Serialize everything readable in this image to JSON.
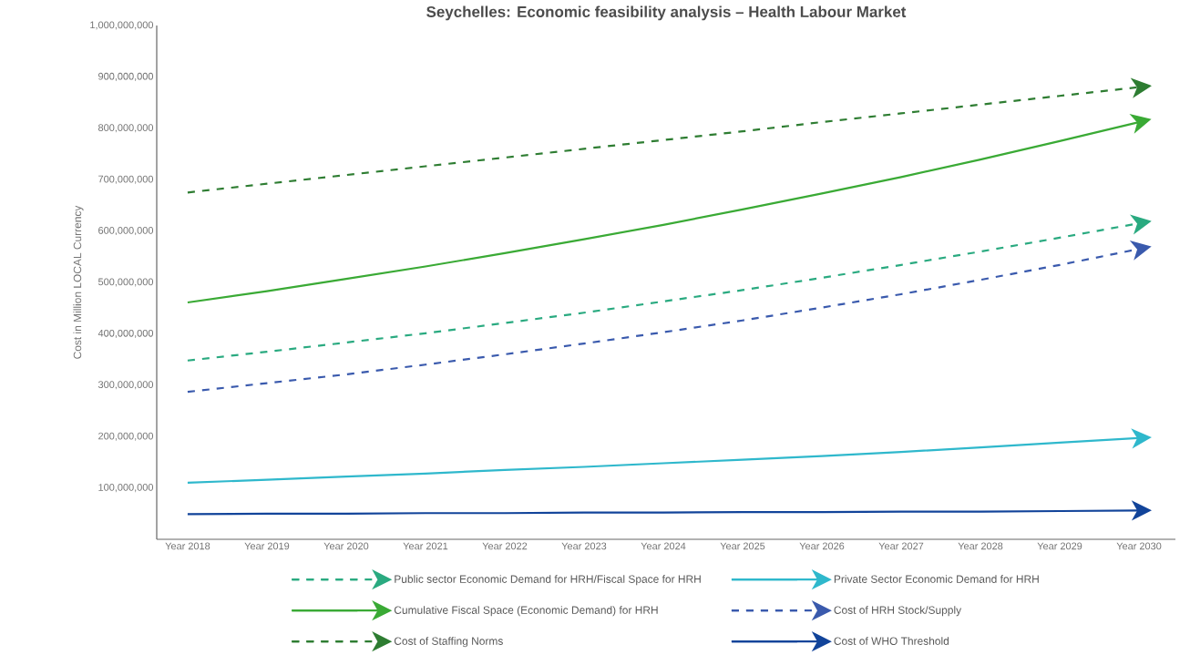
{
  "chart_data": {
    "type": "line",
    "title": "Seychelles: Economic feasibility analysis – Health Labour Market",
    "ylabel": "Cost in Million LOCAL Currency",
    "categories": [
      "Year 2018",
      "Year 2019",
      "Year 2020",
      "Year 2021",
      "Year 2022",
      "Year 2023",
      "Year 2024",
      "Year 2025",
      "Year 2026",
      "Year 2027",
      "Year 2028",
      "Year 2029",
      "Year 2030"
    ],
    "ylim": [
      0,
      1000000000
    ],
    "yticks": [
      {
        "value": 100000000,
        "label": "100,000,000"
      },
      {
        "value": 200000000,
        "label": "200,000,000"
      },
      {
        "value": 300000000,
        "label": "300,000,000"
      },
      {
        "value": 400000000,
        "label": "400,000,000"
      },
      {
        "value": 500000000,
        "label": "500,000,000"
      },
      {
        "value": 600000000,
        "label": "600,000,000"
      },
      {
        "value": 700000000,
        "label": "700,000,000"
      },
      {
        "value": 800000000,
        "label": "800,000,000"
      },
      {
        "value": 900000000,
        "label": "900,000,000"
      },
      {
        "value": 1000000000,
        "label": "1,000,000,000"
      }
    ],
    "grid": false,
    "legend": "bottom",
    "marker": "none",
    "series": [
      {
        "name": "Public sector Economic Demand for HRH/Fiscal Space for HRH",
        "color": "#2aaa80",
        "line_style": "dashed",
        "values": [
          348000000,
          365000000,
          383000000,
          401000000,
          421000000,
          441000000,
          463000000,
          485000000,
          509000000,
          534000000,
          560000000,
          587000000,
          615000000
        ]
      },
      {
        "name": "Private Sector Economic Demand for HRH",
        "color": "#2fb8cc",
        "line_style": "solid",
        "values": [
          110000000,
          116000000,
          122000000,
          128000000,
          135000000,
          141000000,
          148000000,
          155000000,
          162000000,
          170000000,
          179000000,
          188000000,
          197000000
        ]
      },
      {
        "name": "Cumulative Fiscal Space (Economic Demand) for HRH",
        "color": "#3aaa35",
        "line_style": "solid",
        "values": [
          461000000,
          483000000,
          507000000,
          531000000,
          557000000,
          584000000,
          612000000,
          642000000,
          673000000,
          705000000,
          739000000,
          775000000,
          812000000
        ]
      },
      {
        "name": "Cost of HRH Stock/Supply",
        "color": "#3a5aad",
        "line_style": "dashed",
        "values": [
          287000000,
          304000000,
          321000000,
          340000000,
          360000000,
          381000000,
          403000000,
          426000000,
          451000000,
          477000000,
          505000000,
          534000000,
          565000000
        ]
      },
      {
        "name": "Cost of Staffing Norms",
        "color": "#2e7d32",
        "line_style": "dashed",
        "values": [
          675000000,
          692000000,
          709000000,
          726000000,
          743000000,
          760000000,
          777000000,
          794000000,
          812000000,
          829000000,
          846000000,
          863000000,
          880000000
        ]
      },
      {
        "name": "Cost of WHO Threshold",
        "color": "#12449a",
        "line_style": "solid",
        "values": [
          49000000,
          50000000,
          50000000,
          51000000,
          51000000,
          52000000,
          52000000,
          53000000,
          53000000,
          54000000,
          54000000,
          55000000,
          56000000
        ]
      }
    ]
  }
}
